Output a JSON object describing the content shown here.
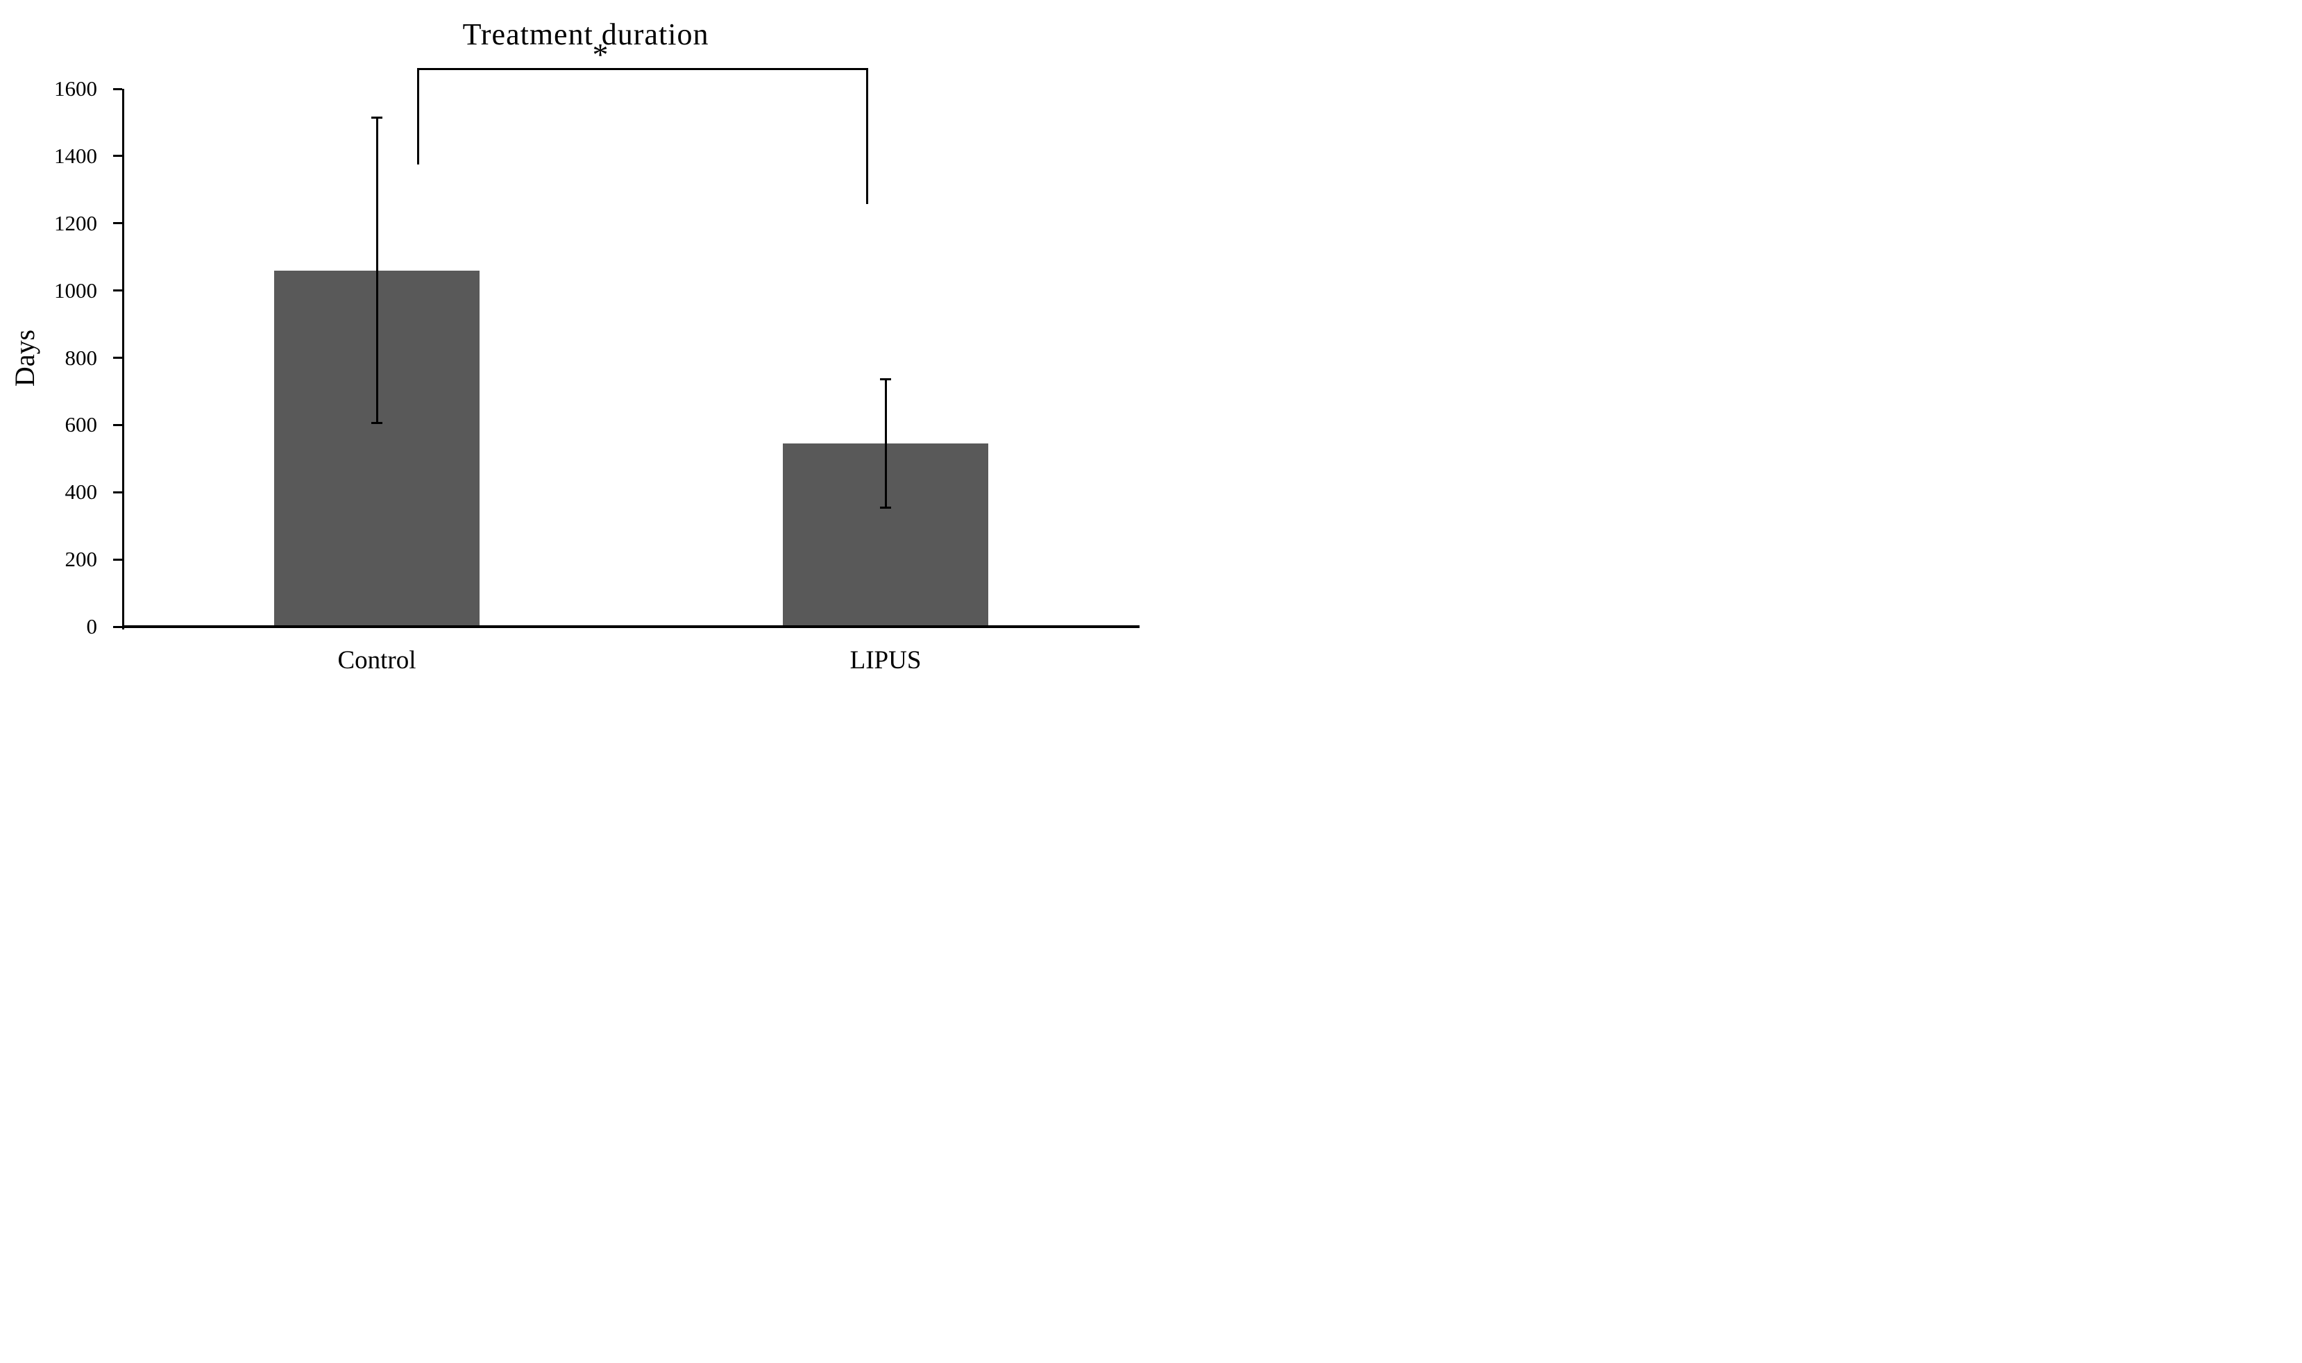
{
  "figure": {
    "background": "#ffffff"
  },
  "chart_data": {
    "type": "bar",
    "title": "Treatment duration",
    "ylabel": "Days",
    "xlabel": "",
    "categories": [
      "Control",
      "LIPUS"
    ],
    "values": [
      1060,
      545
    ],
    "error_plus": [
      455,
      190
    ],
    "error_minus": [
      455,
      190
    ],
    "error_tips_upper": [
      1515,
      735
    ],
    "error_tips_lower": [
      605,
      355
    ],
    "yticks": [
      0,
      200,
      400,
      600,
      800,
      1000,
      1200,
      1400,
      1600
    ],
    "ylim": [
      0,
      1600
    ],
    "bar_color": "#595959",
    "axis_color": "#000000",
    "error_bar_color": "#000000",
    "grid": false,
    "legend_position": "none",
    "annotations": [
      {
        "type": "significance_bracket",
        "between": [
          "Control",
          "LIPUS"
        ],
        "label": "*"
      }
    ]
  }
}
